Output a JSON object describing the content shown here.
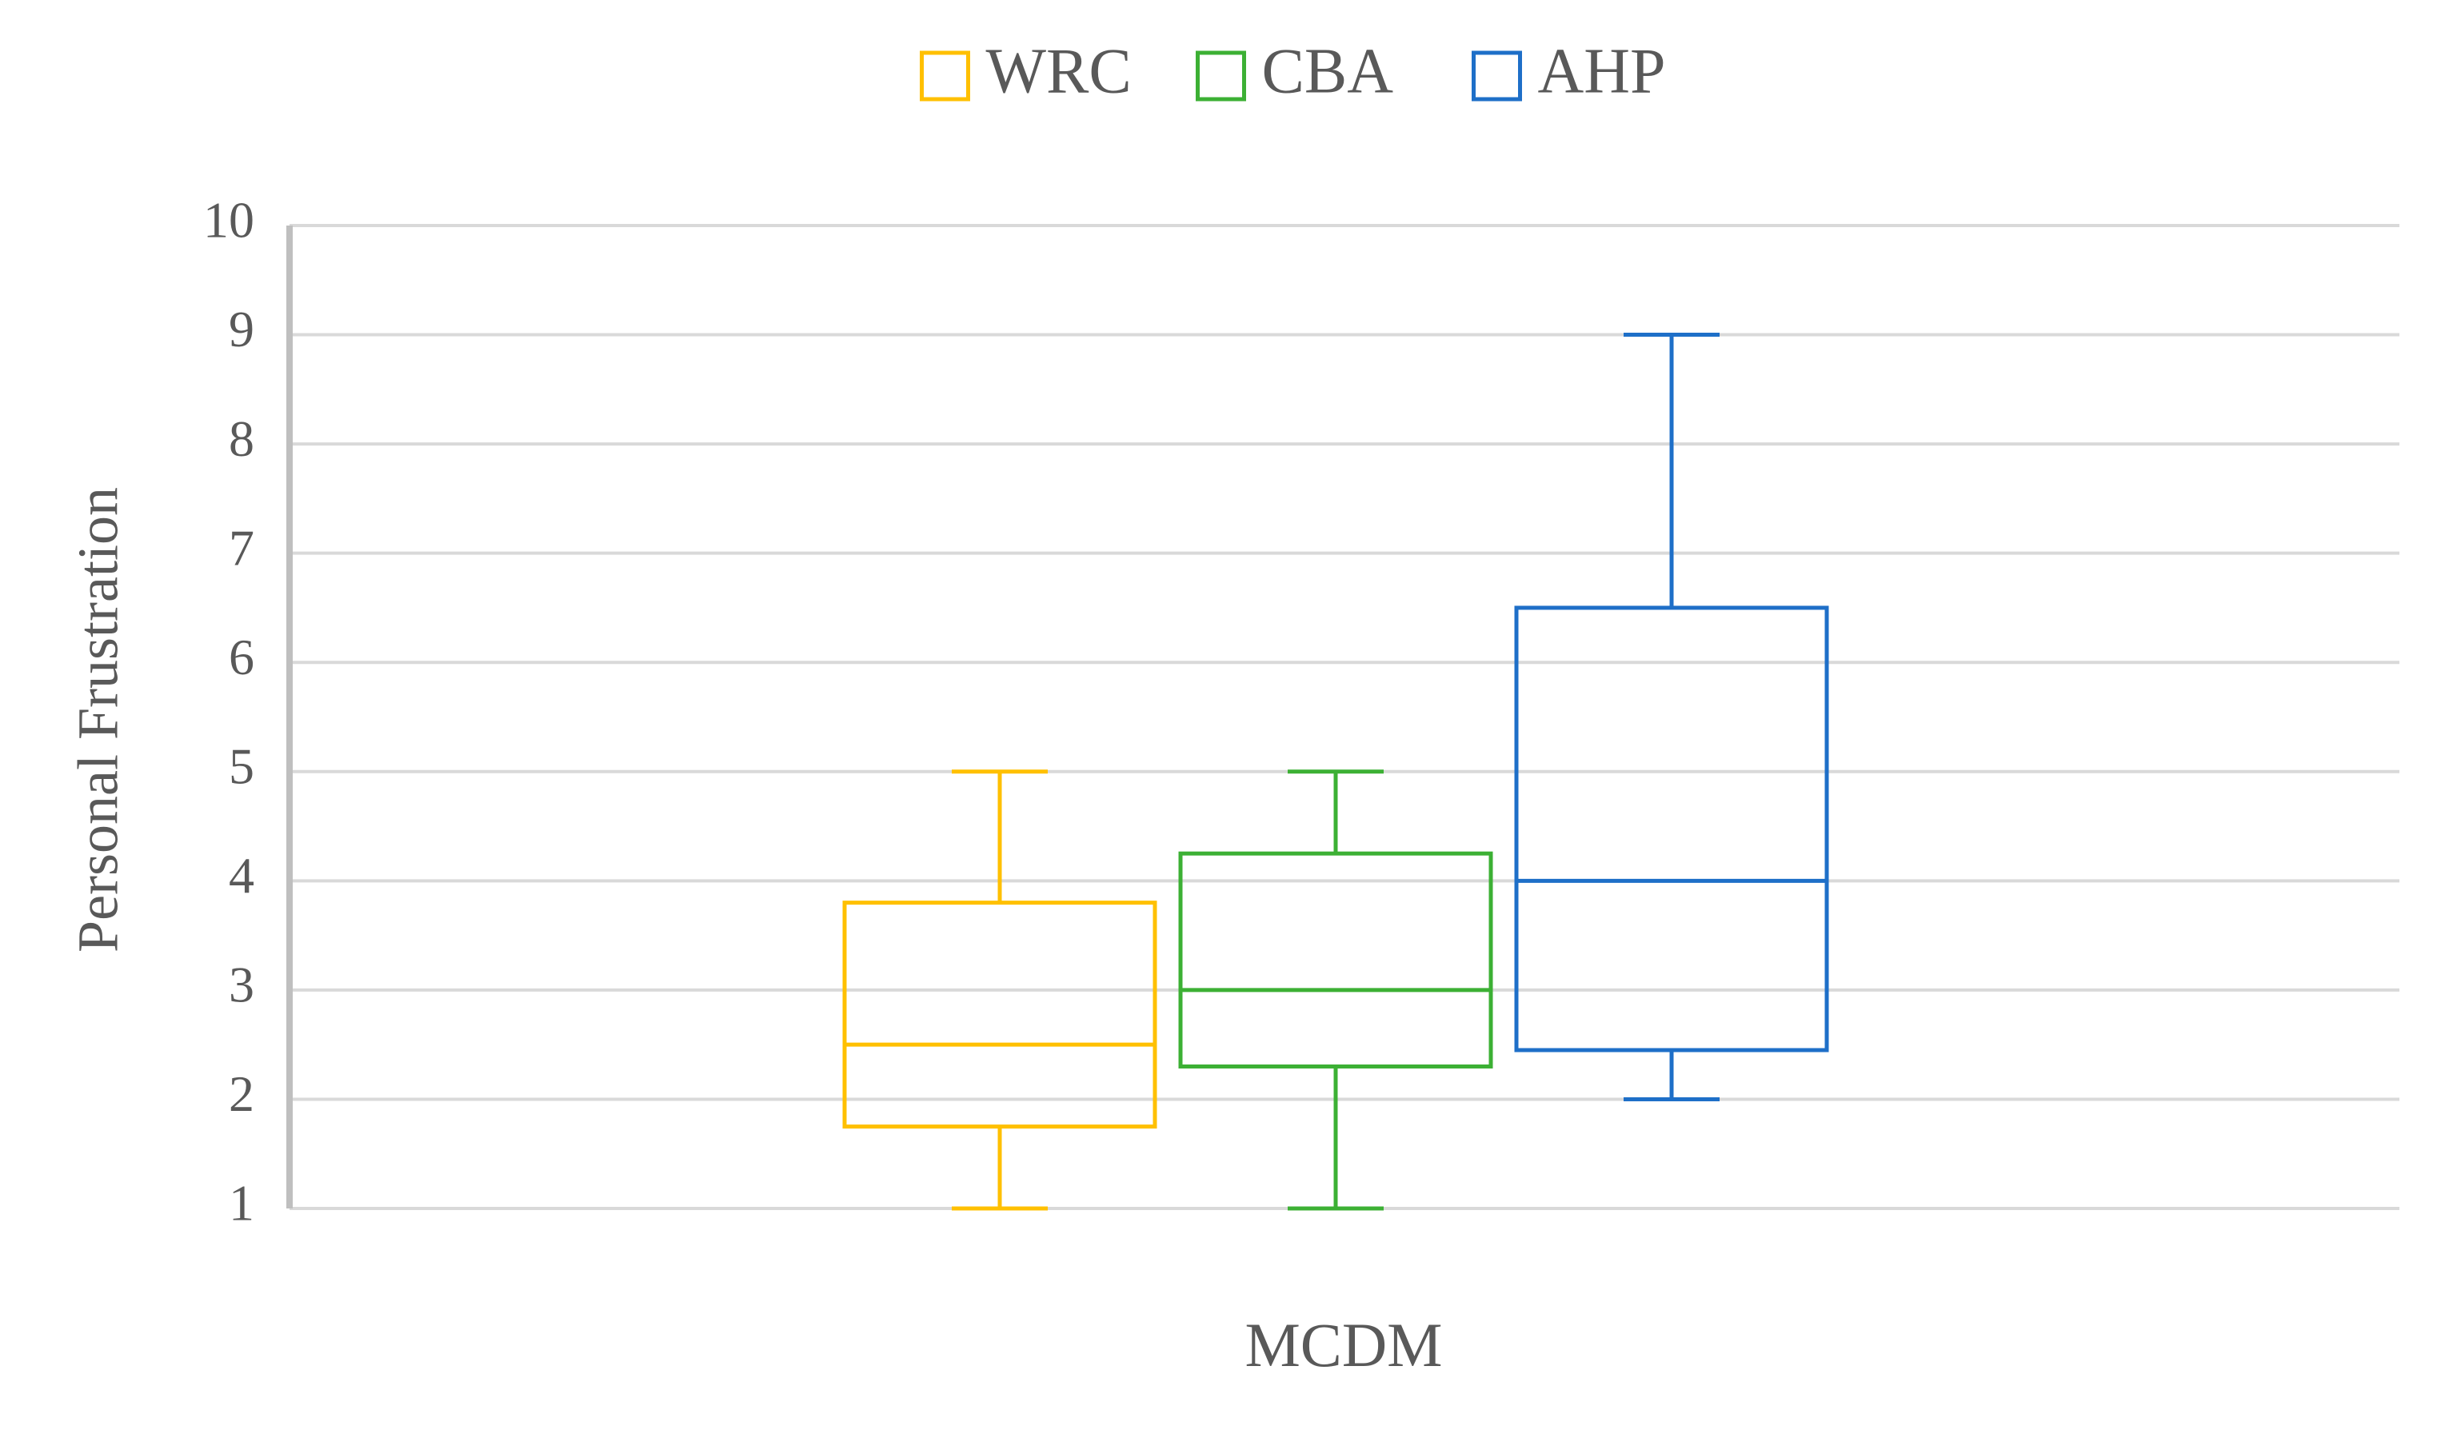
{
  "chart_data": {
    "type": "box",
    "x_label": "MCDM",
    "y_label": "Personal Frustration",
    "ylim": [
      1,
      10
    ],
    "yticks": [
      1,
      2,
      3,
      4,
      5,
      6,
      7,
      8,
      9,
      10
    ],
    "grid": true,
    "legend": "top",
    "series": [
      {
        "name": "WRC",
        "color": "#ffc000",
        "min": 1,
        "q1": 1.75,
        "median": 2.5,
        "q3": 3.8,
        "max": 5
      },
      {
        "name": "CBA",
        "color": "#3cb034",
        "min": 1,
        "q1": 2.3,
        "median": 3,
        "q3": 4.25,
        "max": 5
      },
      {
        "name": "AHP",
        "color": "#1e6fc8",
        "min": 2,
        "q1": 2.45,
        "median": 4,
        "q3": 6.5,
        "max": 9
      }
    ]
  }
}
